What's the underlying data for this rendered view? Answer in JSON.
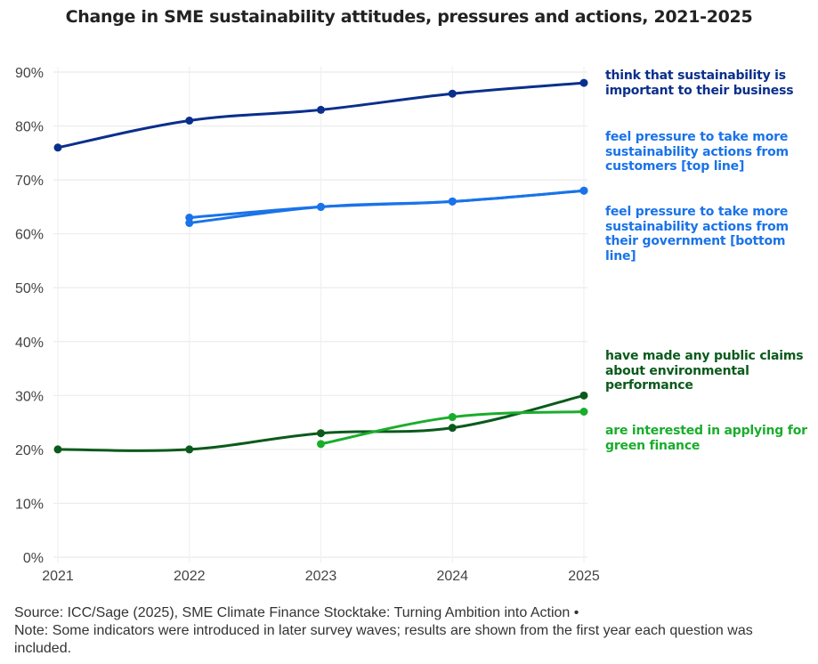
{
  "chart_data": {
    "type": "line",
    "title": "Change in SME sustainability attitudes, pressures and actions, 2021-2025",
    "xlabel": "",
    "ylabel": "",
    "x": [
      "2021",
      "2022",
      "2023",
      "2024",
      "2025"
    ],
    "ylim": [
      0,
      90
    ],
    "yticks": [
      "0%",
      "10%",
      "20%",
      "30%",
      "40%",
      "50%",
      "60%",
      "70%",
      "80%",
      "90%"
    ],
    "grid": true,
    "legend": "right (direct labels)",
    "series": [
      {
        "name": "think that sustainability is important to their business",
        "color": "#0a2f8c",
        "values": [
          76,
          81,
          83,
          86,
          88
        ]
      },
      {
        "name": "feel pressure to take more sustainability actions from customers [top line]",
        "color": "#1a73e8",
        "values": [
          null,
          63,
          65,
          66,
          68
        ]
      },
      {
        "name": "feel pressure to take more sustainability actions from their government [bottom line]",
        "color": "#1a73e8",
        "values": [
          null,
          62,
          65,
          66,
          68
        ]
      },
      {
        "name": "have made any public claims about environmental performance",
        "color": "#0b5a1c",
        "values": [
          20,
          20,
          23,
          24,
          30
        ]
      },
      {
        "name": "are interested in applying for green finance",
        "color": "#1aad2c",
        "values": [
          null,
          null,
          21,
          26,
          27
        ]
      }
    ]
  },
  "labels": {
    "important": "think that sustainability is important to their business",
    "customers": "feel pressure to take more sustainability actions from customers [top line]",
    "government": "feel pressure to take more sustainability actions from their government [bottom line]",
    "claims": "have made any public claims about environmental performance",
    "finance": "are interested in applying for green finance"
  },
  "footer": {
    "source": "Source: ICC/Sage (2025), SME Climate Finance Stocktake: Turning Ambition into Action •",
    "note": "Note: Some indicators were introduced in later survey waves; results are shown from the first year each question was included."
  }
}
